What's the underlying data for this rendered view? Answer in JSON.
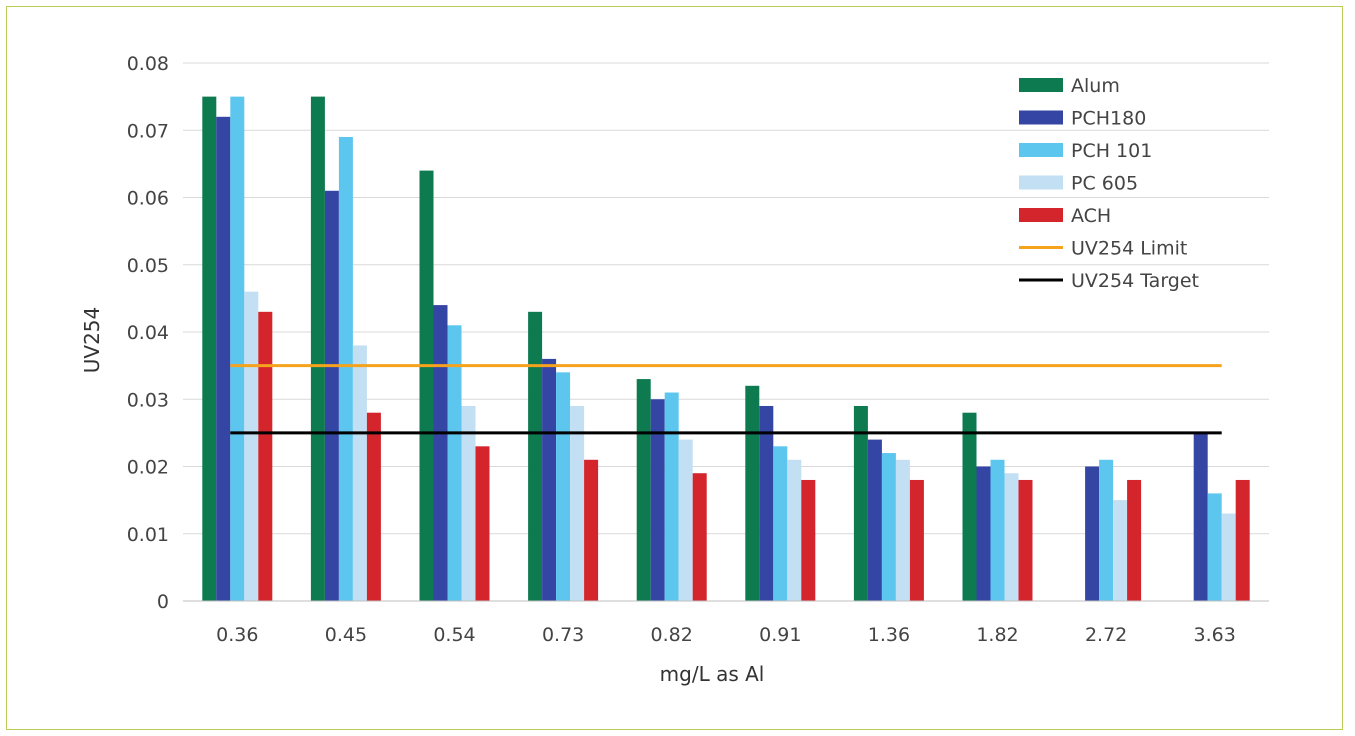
{
  "chart_data": {
    "type": "bar",
    "title": "",
    "xlabel": "mg/L as Al",
    "ylabel": "UV254",
    "ylim": [
      0,
      0.08
    ],
    "yticks": [
      "0.08",
      "0.07",
      "0.06",
      "0.05",
      "0.04",
      "0.03",
      "0.02",
      "0.01",
      "0"
    ],
    "ytick_values": [
      0.08,
      0.07,
      0.06,
      0.05,
      0.04,
      0.03,
      0.02,
      0.01,
      0
    ],
    "categories": [
      "0.36",
      "0.45",
      "0.54",
      "0.73",
      "0.82",
      "0.91",
      "1.36",
      "1.82",
      "2.72",
      "3.63"
    ],
    "grid": "horizontal",
    "legend_position": "top-right",
    "series": [
      {
        "name": "Alum",
        "color": "#0e7a4f",
        "values": [
          0.075,
          0.075,
          0.064,
          0.043,
          0.033,
          0.032,
          0.029,
          0.028,
          0,
          0
        ]
      },
      {
        "name": "PCH180",
        "color": "#3545a4",
        "values": [
          0.072,
          0.061,
          0.044,
          0.036,
          0.03,
          0.029,
          0.024,
          0.02,
          0.02,
          0.025
        ]
      },
      {
        "name": "PCH 101",
        "color": "#5cc6ee",
        "values": [
          0.075,
          0.069,
          0.041,
          0.034,
          0.031,
          0.023,
          0.022,
          0.021,
          0.021,
          0.016
        ]
      },
      {
        "name": "PC 605",
        "color": "#c3dff3",
        "values": [
          0.046,
          0.038,
          0.029,
          0.029,
          0.024,
          0.021,
          0.021,
          0.019,
          0.015,
          0.013
        ]
      },
      {
        "name": "ACH",
        "color": "#d4242c",
        "values": [
          0.043,
          0.028,
          0.023,
          0.021,
          0.019,
          0.018,
          0.018,
          0.018,
          0.018,
          0.018
        ]
      }
    ],
    "reference_lines": [
      {
        "name": "UV254 Limit",
        "color": "#f5a21c",
        "value": 0.035
      },
      {
        "name": "UV254 Target",
        "color": "#000000",
        "value": 0.025
      }
    ]
  }
}
